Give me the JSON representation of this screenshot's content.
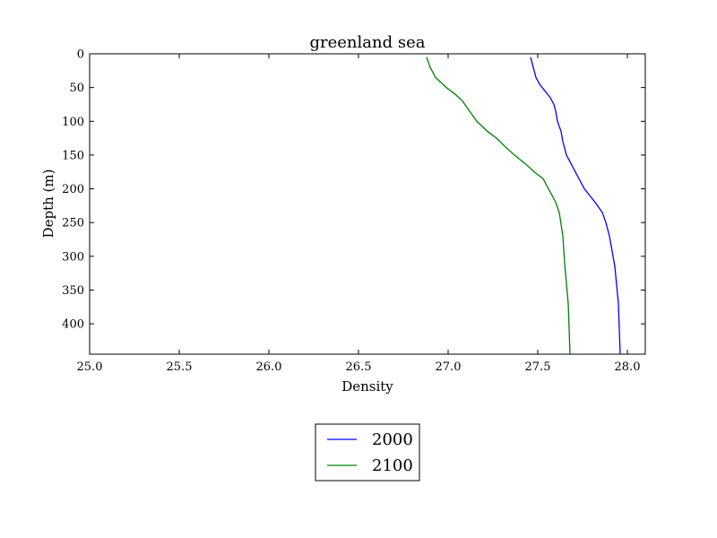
{
  "chart_data": {
    "type": "line",
    "title": "greenland sea",
    "xlabel": "Density",
    "ylabel": "Depth (m)",
    "xlim": [
      25.0,
      28.1
    ],
    "ylim": [
      445,
      0
    ],
    "y_inverted": true,
    "xticks": [
      "25.0",
      "25.5",
      "26.0",
      "26.5",
      "27.0",
      "27.5",
      "28.0"
    ],
    "yticks": [
      "0",
      "50",
      "100",
      "150",
      "200",
      "250",
      "300",
      "350",
      "400"
    ],
    "grid": false,
    "legend_position": "below-center",
    "series": [
      {
        "name": "2000",
        "color": "#0000ff",
        "points": [
          [
            27.46,
            5
          ],
          [
            27.47,
            15
          ],
          [
            27.48,
            25
          ],
          [
            27.49,
            35
          ],
          [
            27.51,
            45
          ],
          [
            27.54,
            55
          ],
          [
            27.57,
            65
          ],
          [
            27.59,
            75
          ],
          [
            27.6,
            85
          ],
          [
            27.61,
            100
          ],
          [
            27.63,
            115
          ],
          [
            27.64,
            130
          ],
          [
            27.66,
            150
          ],
          [
            27.69,
            165
          ],
          [
            27.72,
            180
          ],
          [
            27.76,
            200
          ],
          [
            27.82,
            220
          ],
          [
            27.86,
            235
          ],
          [
            27.88,
            250
          ],
          [
            27.9,
            270
          ],
          [
            27.93,
            315
          ],
          [
            27.95,
            370
          ],
          [
            27.96,
            445
          ]
        ]
      },
      {
        "name": "2100",
        "color": "#008000",
        "points": [
          [
            26.88,
            5
          ],
          [
            26.9,
            20
          ],
          [
            26.93,
            35
          ],
          [
            26.99,
            50
          ],
          [
            27.04,
            60
          ],
          [
            27.08,
            70
          ],
          [
            27.12,
            85
          ],
          [
            27.16,
            100
          ],
          [
            27.22,
            115
          ],
          [
            27.27,
            125
          ],
          [
            27.32,
            138
          ],
          [
            27.37,
            150
          ],
          [
            27.44,
            165
          ],
          [
            27.48,
            175
          ],
          [
            27.53,
            185
          ],
          [
            27.57,
            205
          ],
          [
            27.6,
            220
          ],
          [
            27.62,
            235
          ],
          [
            27.64,
            270
          ],
          [
            27.65,
            310
          ],
          [
            27.67,
            370
          ],
          [
            27.68,
            445
          ]
        ]
      }
    ]
  }
}
